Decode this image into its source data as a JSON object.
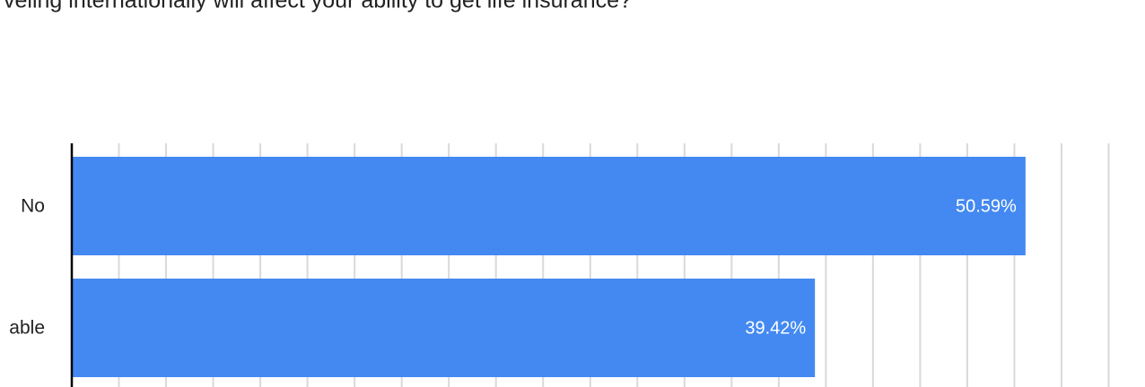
{
  "chart_data": {
    "type": "bar",
    "orientation": "horizontal",
    "title": "veling internationally will affect your ability to get life insurance?",
    "categories": [
      "No",
      "able"
    ],
    "values": [
      50.59,
      39.42
    ],
    "value_labels": [
      "50.59%",
      "39.42%"
    ],
    "color": "#4389f1",
    "xlim": [
      0,
      55
    ],
    "xticks": [
      0,
      2.5,
      5,
      7.5,
      10,
      12.5,
      15,
      17.5,
      20,
      22.5,
      25,
      27.5,
      30,
      32.5,
      35,
      37.5,
      40,
      42.5,
      45,
      47.5,
      50,
      52.5,
      55
    ],
    "grid": true
  }
}
